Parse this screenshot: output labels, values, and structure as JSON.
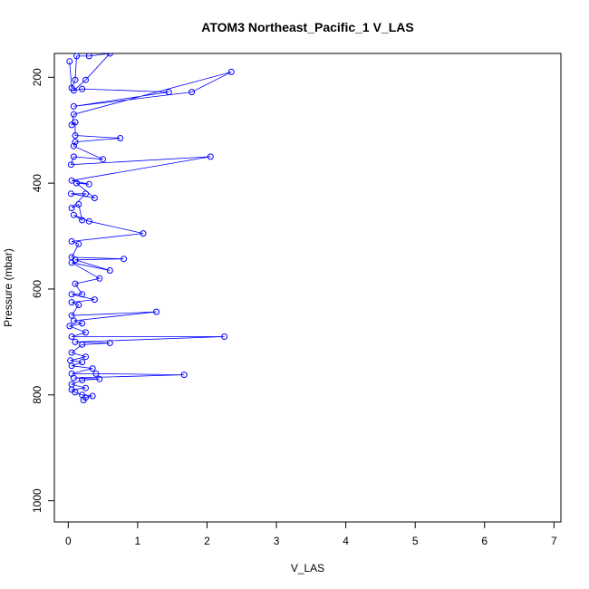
{
  "chart_data": {
    "type": "line",
    "title": "ATOM3 Northeast_Pacific_1 V_LAS",
    "xlabel": "V_LAS",
    "ylabel": "Pressure (mbar)",
    "xlim": [
      -0.2,
      7.1
    ],
    "ylim": [
      1040,
      155
    ],
    "y_reversed": true,
    "x_ticks": [
      0,
      1,
      2,
      3,
      4,
      5,
      6,
      7
    ],
    "y_ticks": [
      200,
      400,
      600,
      800,
      1000
    ],
    "grid": false,
    "legend": "none",
    "series": [
      {
        "color": "#0000ff",
        "marker": "open-circle",
        "points": [
          [
            0.02,
            170
          ],
          [
            0.05,
            220
          ],
          [
            0.1,
            205
          ],
          [
            0.12,
            160
          ],
          [
            0.3,
            160
          ],
          [
            0.6,
            155
          ],
          [
            0.25,
            205
          ],
          [
            0.08,
            225
          ],
          [
            0.2,
            222
          ],
          [
            1.45,
            228
          ],
          [
            0.08,
            255
          ],
          [
            1.78,
            228
          ],
          [
            2.35,
            190
          ],
          [
            0.08,
            270
          ],
          [
            0.05,
            290
          ],
          [
            0.1,
            285
          ],
          [
            0.1,
            310
          ],
          [
            0.75,
            315
          ],
          [
            0.1,
            322
          ],
          [
            0.08,
            330
          ],
          [
            0.5,
            355
          ],
          [
            0.08,
            350
          ],
          [
            0.04,
            365
          ],
          [
            2.05,
            350
          ],
          [
            0.05,
            395
          ],
          [
            0.3,
            402
          ],
          [
            0.12,
            400
          ],
          [
            0.38,
            428
          ],
          [
            0.04,
            420
          ],
          [
            0.25,
            420
          ],
          [
            0.05,
            447
          ],
          [
            0.15,
            440
          ],
          [
            0.2,
            470
          ],
          [
            0.08,
            460
          ],
          [
            0.3,
            472
          ],
          [
            1.08,
            495
          ],
          [
            0.05,
            510
          ],
          [
            0.15,
            515
          ],
          [
            0.05,
            540
          ],
          [
            0.8,
            543
          ],
          [
            0.1,
            545
          ],
          [
            0.6,
            565
          ],
          [
            0.05,
            550
          ],
          [
            0.45,
            580
          ],
          [
            0.1,
            590
          ],
          [
            0.2,
            610
          ],
          [
            0.05,
            610
          ],
          [
            0.38,
            620
          ],
          [
            0.05,
            625
          ],
          [
            0.15,
            630
          ],
          [
            0.05,
            650
          ],
          [
            1.27,
            643
          ],
          [
            0.08,
            660
          ],
          [
            0.2,
            665
          ],
          [
            0.02,
            670
          ],
          [
            0.25,
            682
          ],
          [
            0.05,
            690
          ],
          [
            2.25,
            690
          ],
          [
            0.1,
            700
          ],
          [
            0.6,
            702
          ],
          [
            0.2,
            705
          ],
          [
            0.05,
            720
          ],
          [
            0.25,
            728
          ],
          [
            0.03,
            735
          ],
          [
            0.2,
            738
          ],
          [
            0.05,
            745
          ],
          [
            0.35,
            750
          ],
          [
            0.05,
            760
          ],
          [
            0.4,
            760
          ],
          [
            1.67,
            762
          ],
          [
            0.08,
            768
          ],
          [
            0.45,
            770
          ],
          [
            0.2,
            772
          ],
          [
            0.05,
            780
          ],
          [
            0.25,
            787
          ],
          [
            0.05,
            790
          ],
          [
            0.1,
            795
          ],
          [
            0.2,
            800
          ],
          [
            0.35,
            802
          ],
          [
            0.25,
            805
          ],
          [
            0.22,
            810
          ]
        ]
      }
    ]
  }
}
